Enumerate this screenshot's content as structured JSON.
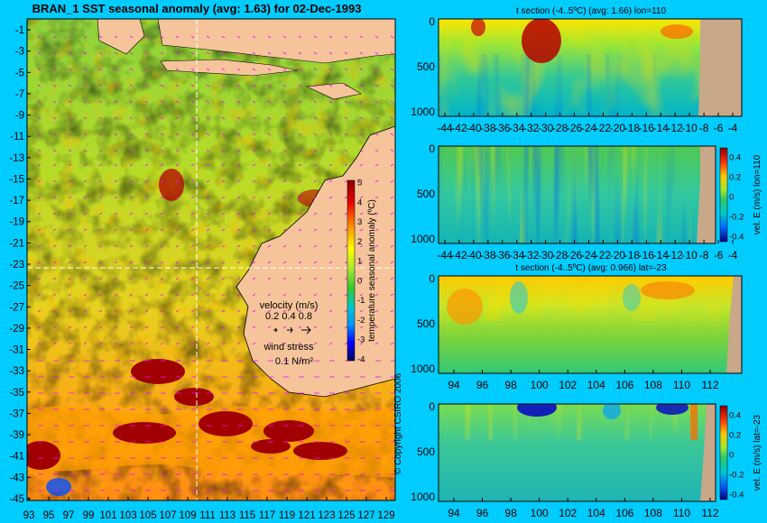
{
  "palette": {
    "background": "#00ccff",
    "land": "#f5c49a",
    "land_section": "#c8a888",
    "sst_scale": [
      "#2a0070",
      "#0000c8",
      "#0050ff",
      "#00a0ff",
      "#00c8c8",
      "#00c864",
      "#32dc32",
      "#a0e632",
      "#ffff00",
      "#ffb400",
      "#ff6400",
      "#c80000",
      "#8b0000"
    ],
    "vel_scale": [
      "#000080",
      "#0000ff",
      "#0096ff",
      "#00c8c8",
      "#32c832",
      "#a0e632",
      "#ffff00",
      "#ff9600",
      "#e60000",
      "#8b0000"
    ],
    "vector_color": "#ff00ff",
    "text_color": "#000000"
  },
  "map": {
    "title": "BRAN_1  SST seasonal anomaly (avg: 1.63) for 02-Dec-1993",
    "lat_ticks": [
      "-1",
      "-3",
      "-5",
      "-7",
      "-9",
      "-11",
      "-13",
      "-15",
      "-17",
      "-19",
      "-21",
      "-23",
      "-25",
      "-27",
      "-29",
      "-31",
      "-33",
      "-35",
      "-37",
      "-39",
      "-41",
      "-43",
      "-45"
    ],
    "lon_ticks": [
      "93",
      "95",
      "97",
      "99",
      "101",
      "103",
      "105",
      "107",
      "109",
      "111",
      "113",
      "115",
      "117",
      "119",
      "121",
      "123",
      "125",
      "127",
      "129"
    ],
    "copyright": "© Copyright CSIRO 2006",
    "colorbar": {
      "label": "temperature seasonal anomaly (ºC)",
      "ticks": [
        "5",
        "4",
        "3",
        "2",
        "1",
        "0",
        "-1",
        "-2",
        "-3",
        "-4"
      ]
    },
    "legend": {
      "velocity_title": "velocity (m/s)",
      "velocity_values": "0.2 0.4 0.8",
      "wind_title": "wind stress",
      "wind_value": "0.1 N/m²"
    }
  },
  "chart_data": [
    {
      "type": "heatmap",
      "title": "BRAN_1  SST seasonal anomaly (avg: 1.63) for 02-Dec-1993",
      "x_ticks": [
        93,
        95,
        97,
        99,
        101,
        103,
        105,
        107,
        109,
        111,
        113,
        115,
        117,
        119,
        121,
        123,
        125,
        127,
        129
      ],
      "y_ticks": [
        -1,
        -3,
        -5,
        -7,
        -9,
        -11,
        -13,
        -15,
        -17,
        -19,
        -21,
        -23,
        -25,
        -27,
        -29,
        -31,
        -33,
        -35,
        -37,
        -39,
        -41,
        -43,
        -45
      ],
      "xlim": [
        93,
        130
      ],
      "ylim": [
        -45,
        0
      ],
      "colorbar_label": "temperature seasonal anomaly (ºC)",
      "colorbar_range": [
        -4,
        5
      ],
      "average": 1.63
    },
    {
      "type": "heatmap",
      "title": "t section (-4..5ºC) (avg: 1.66) lon=110",
      "x_ticks": [
        -44,
        -42,
        -40,
        -38,
        -36,
        -34,
        -32,
        -30,
        -28,
        -26,
        -24,
        -22,
        -20,
        -18,
        -16,
        -14,
        -12,
        -10,
        -8,
        -6,
        -4
      ],
      "y_ticks": [
        0,
        500,
        1000
      ],
      "average": 1.66
    },
    {
      "type": "heatmap",
      "title": "",
      "x_ticks": [
        -44,
        -42,
        -40,
        -38,
        -36,
        -34,
        -32,
        -30,
        -28,
        -26,
        -24,
        -22,
        -20,
        -18,
        -16,
        -14,
        -12,
        -10,
        -8,
        -6,
        -4
      ],
      "y_ticks": [
        0,
        500,
        1000
      ],
      "colorbar_label": "vel. E (m/s) lon=110",
      "colorbar_ticks": [
        "0.4",
        "0.2",
        "0",
        "-0.2",
        "-0.4"
      ]
    },
    {
      "type": "heatmap",
      "title": "t section (-4..5ºC) (avg: 0.966) lat=-23",
      "x_ticks": [
        94,
        96,
        98,
        100,
        102,
        104,
        106,
        108,
        110,
        112
      ],
      "y_ticks": [
        0,
        500,
        1000
      ],
      "average": 0.966
    },
    {
      "type": "heatmap",
      "title": "",
      "x_ticks": [
        94,
        96,
        98,
        100,
        102,
        104,
        106,
        108,
        110,
        112
      ],
      "y_ticks": [
        0,
        500,
        1000
      ],
      "colorbar_label": "vel. E (m/s) lat=-23",
      "colorbar_ticks": [
        "0.4",
        "0.2",
        "0",
        "-0.2",
        "-0.4"
      ]
    }
  ],
  "sections": {
    "s1": {
      "title": "t section (-4..5ºC) (avg: 1.66) lon=110",
      "x_ticks": [
        "-44",
        "-42",
        "-40",
        "-38",
        "-36",
        "-34",
        "-32",
        "-30",
        "-28",
        "-26",
        "-24",
        "-22",
        "-20",
        "-18",
        "-16",
        "-14",
        "-12",
        "-10",
        "-8",
        "-6",
        "-4"
      ],
      "y_ticks": [
        "0",
        "500",
        "1000"
      ]
    },
    "s2": {
      "x_ticks": [
        "-44",
        "-42",
        "-40",
        "-38",
        "-36",
        "-34",
        "-32",
        "-30",
        "-28",
        "-26",
        "-24",
        "-22",
        "-20",
        "-18",
        "-16",
        "-14",
        "-12",
        "-10",
        "-8",
        "-6",
        "-4"
      ],
      "y_ticks": [
        "0",
        "500",
        "1000"
      ],
      "colorbar_label": "vel. E (m/s) lon=110",
      "colorbar_ticks": [
        "0.4",
        "0.2",
        "0",
        "-0.2",
        "-0.4"
      ]
    },
    "s3": {
      "title": "t section (-4..5ºC) (avg: 0.966) lat=-23",
      "x_ticks": [
        "94",
        "96",
        "98",
        "100",
        "102",
        "104",
        "106",
        "108",
        "110",
        "112"
      ],
      "y_ticks": [
        "0",
        "500",
        "1000"
      ]
    },
    "s4": {
      "x_ticks": [
        "94",
        "96",
        "98",
        "100",
        "102",
        "104",
        "106",
        "108",
        "110",
        "112"
      ],
      "y_ticks": [
        "0",
        "500",
        "1000"
      ],
      "colorbar_label": "vel. E (m/s) lat=-23",
      "colorbar_ticks": [
        "0.4",
        "0.2",
        "0",
        "-0.2",
        "-0.4"
      ]
    }
  }
}
